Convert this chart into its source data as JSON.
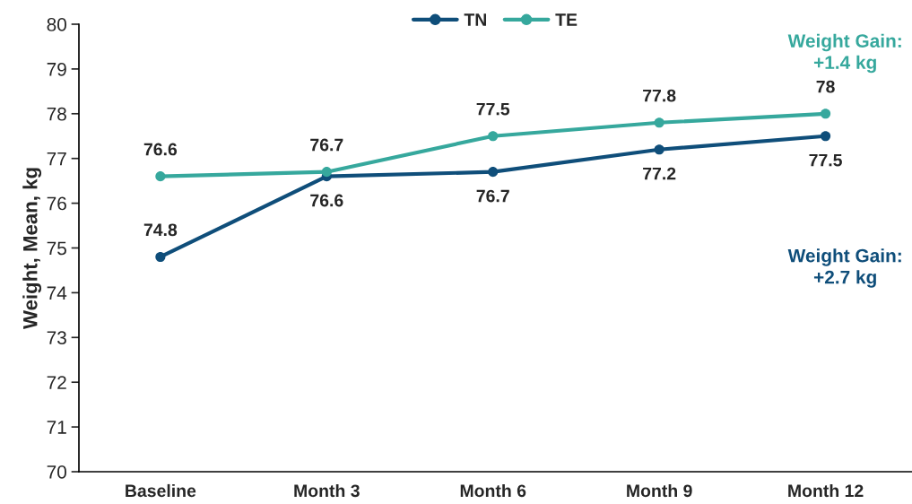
{
  "chart_data": {
    "type": "line",
    "ylabel": "Weight, Mean, kg",
    "categories": [
      "Baseline",
      "Month 3",
      "Month 6",
      "Month 9",
      "Month 12"
    ],
    "series": [
      {
        "name": "TN",
        "color": "#0f4e7a",
        "values": [
          74.8,
          76.6,
          76.7,
          77.2,
          77.5
        ]
      },
      {
        "name": "TE",
        "color": "#36a89d",
        "values": [
          76.6,
          76.7,
          77.5,
          77.8,
          78
        ]
      }
    ],
    "ylim": [
      70,
      80
    ],
    "yticks": [
      70,
      71,
      72,
      73,
      74,
      75,
      76,
      77,
      78,
      79,
      80
    ],
    "annotations": [
      "Weight Gain:\n+2.7 kg",
      "Weight Gain:\n+1.4 kg"
    ],
    "data_labels": true,
    "marker": "circle",
    "line_style": "solid",
    "grid": false,
    "legend": "top"
  }
}
